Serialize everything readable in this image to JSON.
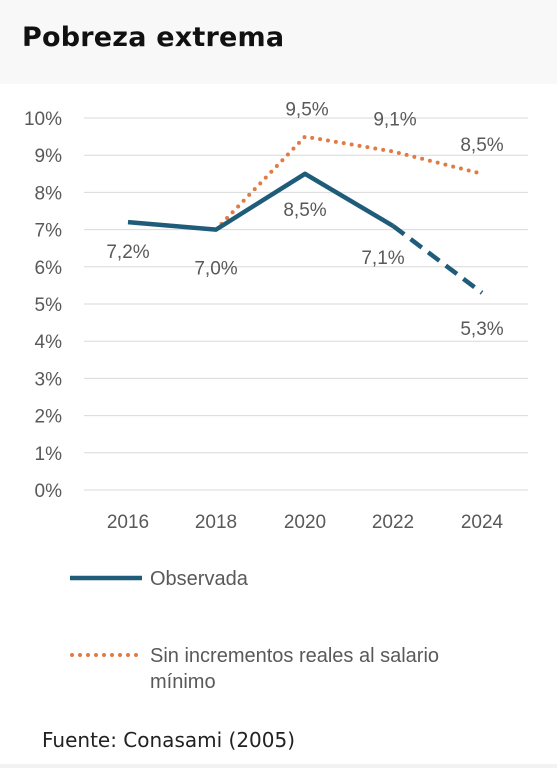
{
  "title": "Pobreza extrema",
  "source": "Fuente: Conasami (2005)",
  "colors": {
    "observed": "#1f5c7a",
    "counterfactual": "#e07b45",
    "grid": "#d9d9d9",
    "text": "#595959"
  },
  "chart_data": {
    "type": "line",
    "title": "",
    "xlabel": "",
    "ylabel": "",
    "categories": [
      "2016",
      "2018",
      "2020",
      "2022",
      "2024"
    ],
    "ylim": [
      0,
      10
    ],
    "yticks": [
      "0%",
      "1%",
      "2%",
      "3%",
      "4%",
      "5%",
      "6%",
      "7%",
      "8%",
      "9%",
      "10%"
    ],
    "grid": true,
    "legend_position": "bottom",
    "series": [
      {
        "name": "Observada",
        "values": [
          7.2,
          7.0,
          8.5,
          7.1,
          5.3
        ],
        "labels": [
          "7,2%",
          "7,0%",
          "8,5%",
          "7,1%",
          "5,3%"
        ],
        "style": "solid",
        "dashed_from_index": 3
      },
      {
        "name": "Sin incrementos reales al salario mínimo",
        "values": [
          null,
          7.0,
          9.5,
          9.1,
          8.5
        ],
        "labels": [
          null,
          null,
          "9,5%",
          "9,1%",
          "8,5%"
        ],
        "style": "dotted"
      }
    ]
  }
}
